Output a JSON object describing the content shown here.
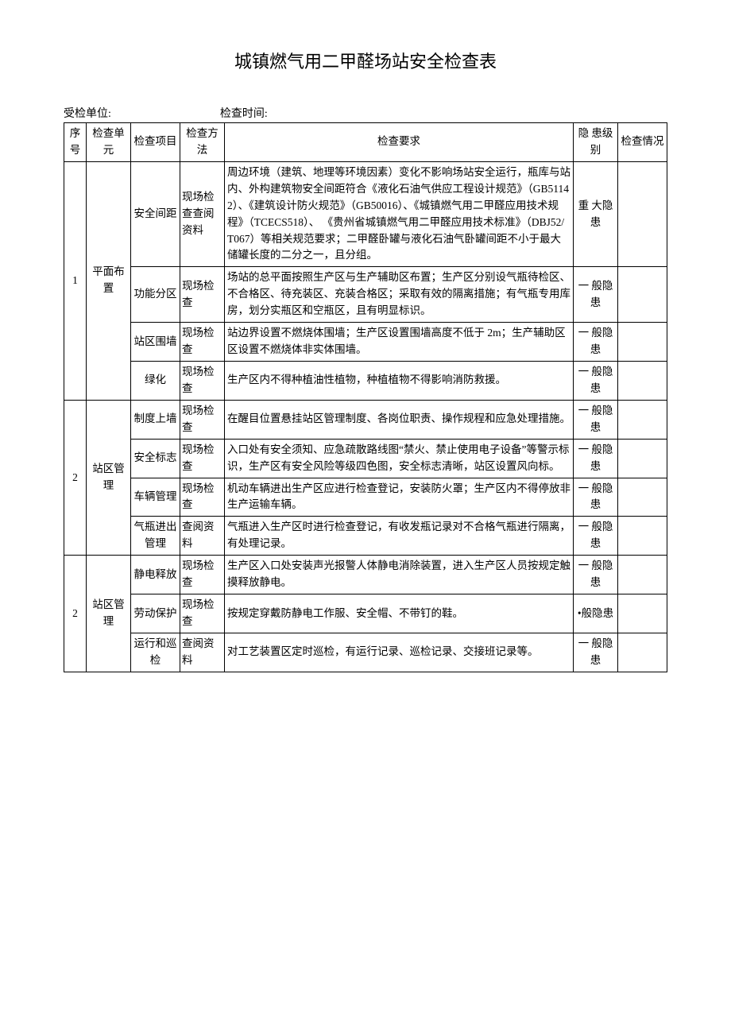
{
  "title": "城镇燃气用二甲醛场站安全检查表",
  "meta": {
    "unit_label": "受检单位:",
    "time_label": "检查时间:"
  },
  "headers": {
    "seq": "序号",
    "unit": "检查单元",
    "item": "检查项目",
    "method": "检查方法",
    "req": "检查要求",
    "level": "隐 患级别",
    "status": "检查情况"
  },
  "groups": [
    {
      "seq": "1",
      "unit": "平面布置",
      "rows": [
        {
          "item": "安全间距",
          "method": "现场检查查阅资料",
          "req": "周边环境（建筑、地理等环境因素）变化不影响场站安全运行，瓶库与站内、外构建筑物安全间距符合《液化石油气供应工程设计规范》（GB51142）、《建筑设计防火规范》（GB50016）、《城镇燃气用二甲醛应用技术规程》（TCECS518）、\n《贵州省城镇燃气用二甲醛应用技术标准》（DBJ52/T067）等相关规范要求；二甲醛卧罐与液化石油气卧罐间距不小于最大储罐长度的二分之一，且分组。",
          "level": "重 大隐患"
        },
        {
          "item": "功能分区",
          "method": "现场检查",
          "req": "场站的总平面按照生产区与生产辅助区布置；生产区分别设气瓶待检区、不合格区、待充装区、充装合格区；采取有效的隔离措施；有气瓶专用库房，划分实瓶区和空瓶区，且有明显标识。",
          "level": "一 般隐患"
        },
        {
          "item": "站区围墙",
          "method": "现场检查",
          "req": "站边界设置不燃烧体围墙；生产区设置围墙高度不低于 2m；生产辅助区区设置不燃烧体非实体围墙。",
          "level": "一 般隐患"
        },
        {
          "item": "绿化",
          "method": "现场检查",
          "req": "生产区内不得种植油性植物，种植植物不得影响消防救援。",
          "level": "一 般隐患"
        }
      ]
    },
    {
      "seq": "2",
      "unit": "站区管理",
      "rows": [
        {
          "item": "制度上墙",
          "method": "现场检查",
          "req": "在醒目位置悬挂站区管理制度、各岗位职责、操作规程和应急处理措施。",
          "level": "一 般隐患"
        },
        {
          "item": "安全标志",
          "method": "现场检查",
          "req": "入口处有安全须知、应急疏散路线图“禁火、禁止使用电子设备”等警示标识，生产区有安全风险等级四色图，安全标志清晰，站区设置风向标。",
          "level": "一 般隐患"
        },
        {
          "item": "车辆管理",
          "method": "现场检查",
          "req": "机动车辆进出生产区应进行检查登记，安装防火罩；生产区内不得停放非生产运输车辆。",
          "level": "一 般隐患"
        },
        {
          "item": "气瓶进出管理",
          "method": "查阅资料",
          "req": "气瓶进入生产区时进行检查登记，有收发瓶记录对不合格气瓶进行隔离，有处理记录。",
          "level": "一 般隐患"
        }
      ]
    },
    {
      "seq": "2",
      "unit": "站区管理",
      "rows": [
        {
          "item": "静电释放",
          "method": "现场检查",
          "req": "生产区入口处安装声光报警人体静电消除装置，进入生产区人员按规定触摸释放静电。",
          "level": "一 般隐患"
        },
        {
          "item": "劳动保护",
          "method": "现场检查",
          "req": "按规定穿戴防静电工作服、安全帽、不带钉的鞋。",
          "level": "•般隐患"
        },
        {
          "item": "运行和巡检",
          "method": "查阅资料",
          "req": "对工艺装置区定时巡检，有运行记录、巡检记录、交接班记录等。",
          "level": "一 般隐患"
        }
      ]
    }
  ]
}
